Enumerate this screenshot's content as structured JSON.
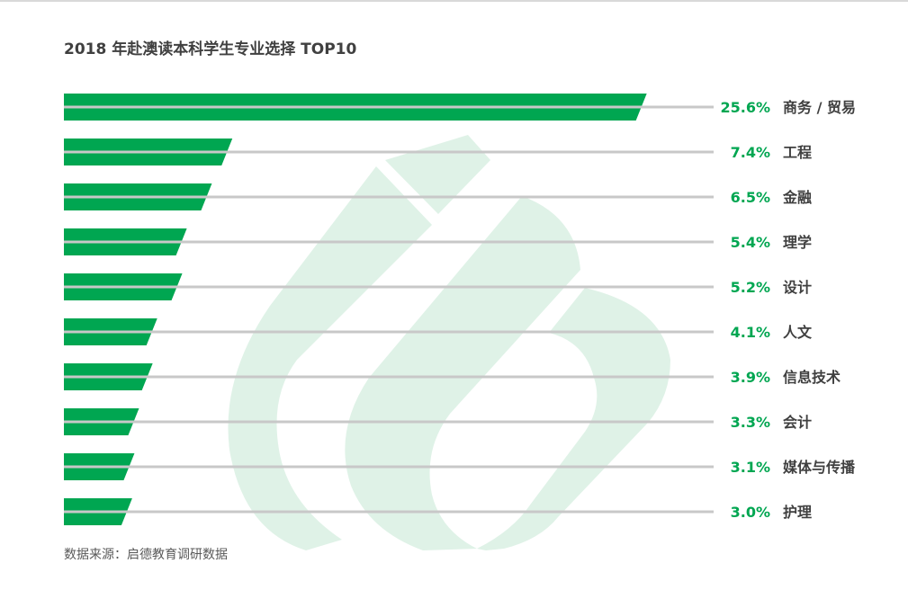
{
  "title": "2018 年赴澳读本科学生专业选择 TOP10",
  "source": "数据来源：启德教育调研数据",
  "colors": {
    "bar": "#00a651",
    "axis_line": "#c8c8c8",
    "percent_text": "#00a651",
    "category_text": "#404040",
    "watermark": "#dff2e7"
  },
  "chart_data": {
    "type": "bar",
    "orientation": "horizontal",
    "categories": [
      "商务 / 贸易",
      "工程",
      "金融",
      "理学",
      "设计",
      "人文",
      "信息技术",
      "会计",
      "媒体与传播",
      "护理"
    ],
    "values": [
      25.6,
      7.4,
      6.5,
      5.4,
      5.2,
      4.1,
      3.9,
      3.3,
      3.1,
      3.0
    ],
    "value_labels": [
      "25.6%",
      "7.4%",
      "6.5%",
      "5.4%",
      "5.2%",
      "4.1%",
      "3.9%",
      "3.3%",
      "3.1%",
      "3.0%"
    ],
    "title": "2018 年赴澳读本科学生专业选择 TOP10",
    "xlabel": "",
    "ylabel": "",
    "grid": false,
    "legend": "none"
  }
}
